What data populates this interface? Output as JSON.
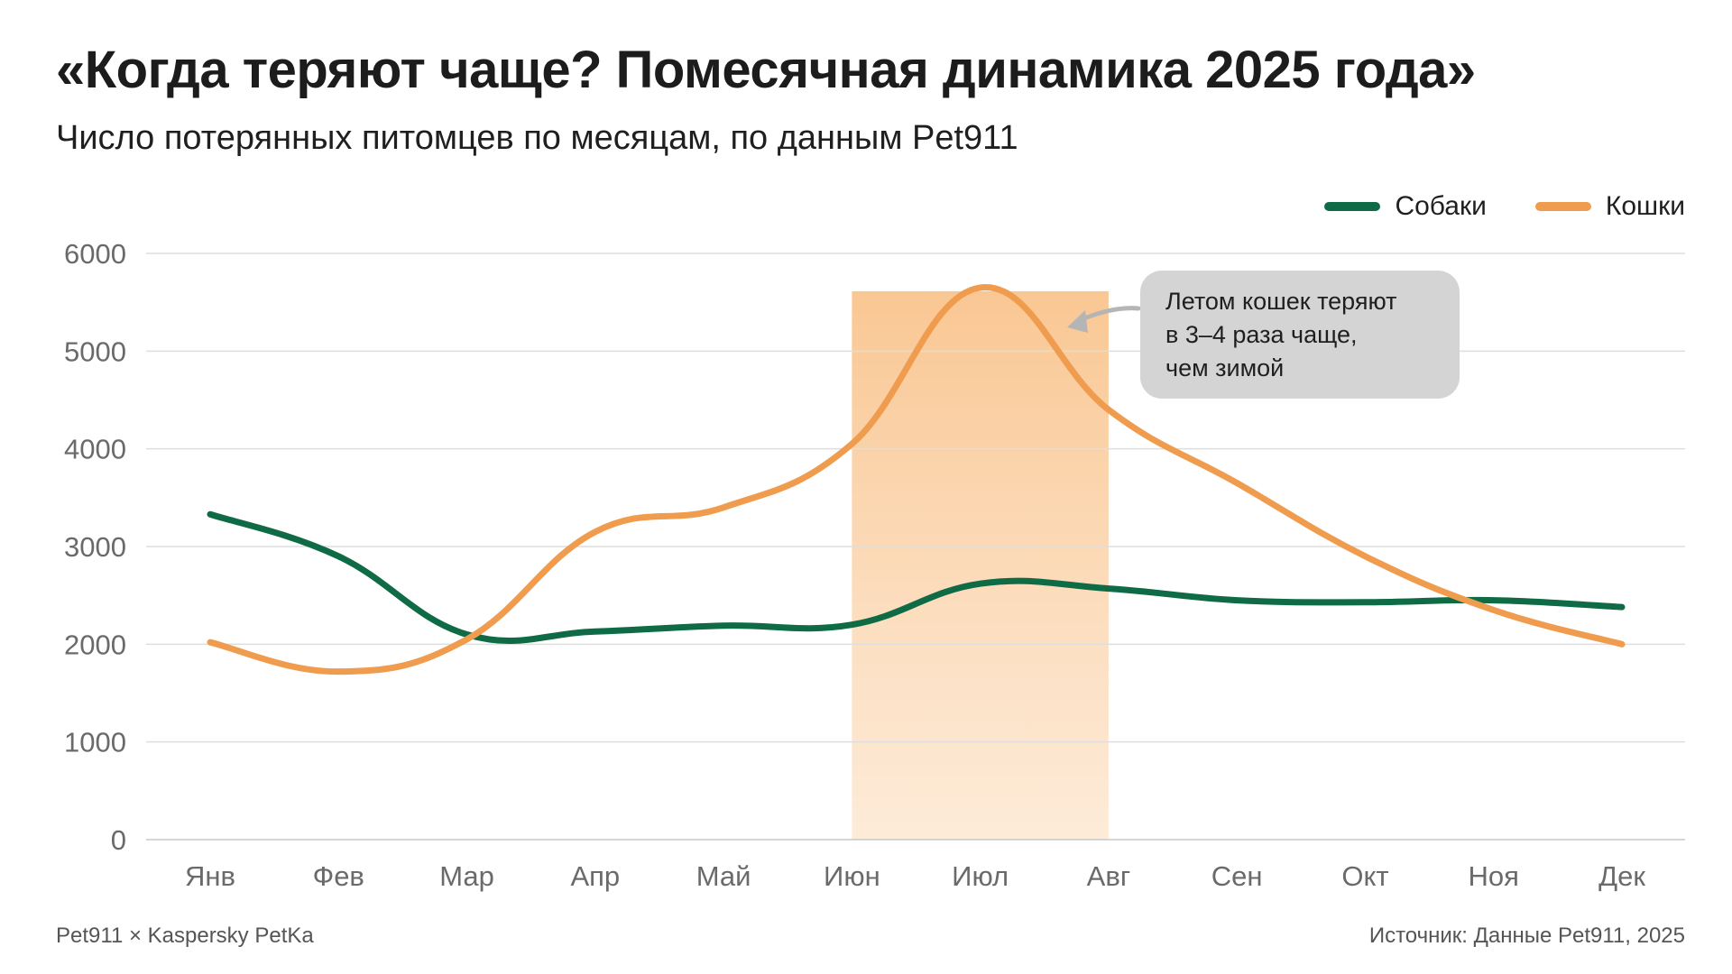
{
  "header": {
    "title": "«Когда теряют чаще? Помесячная динамика 2025 года»",
    "subtitle": "Число потерянных питомцев по месяцам, по данным Pet911"
  },
  "legend": {
    "dogs_label": "Собаки",
    "cats_label": "Кошки"
  },
  "callout": {
    "lines": [
      "Летом кошек теряют",
      "в 3–4 раза чаще,",
      "чем зимой"
    ]
  },
  "footer": {
    "left": "Pet911 × Kaspersky PetKa",
    "right": "Источник: Данные Pet911, 2025"
  },
  "colors": {
    "dogs": "#0f6b45",
    "cats": "#f09c4f",
    "highlight": "#fbd2a6",
    "grid": "#dedede",
    "axis_text": "#6a6a6a"
  },
  "chart_data": {
    "type": "line",
    "categories": [
      "Янв",
      "Фев",
      "Мар",
      "Апр",
      "Май",
      "Июн",
      "Июл",
      "Авг",
      "Сен",
      "Окт",
      "Ноя",
      "Дек"
    ],
    "series": [
      {
        "name": "Собаки",
        "values": [
          3330,
          2900,
          2100,
          2130,
          2190,
          2200,
          2620,
          2570,
          2450,
          2430,
          2450,
          2380
        ]
      },
      {
        "name": "Кошки",
        "values": [
          2020,
          1720,
          2050,
          3150,
          3400,
          4050,
          5650,
          4400,
          3650,
          2900,
          2350,
          2000
        ]
      }
    ],
    "ylim": [
      0,
      6000
    ],
    "yticks": [
      0,
      1000,
      2000,
      3000,
      4000,
      5000,
      6000
    ],
    "highlight_range": [
      "Июн",
      "Авг"
    ],
    "grid": true,
    "legend_position": "top-right"
  }
}
